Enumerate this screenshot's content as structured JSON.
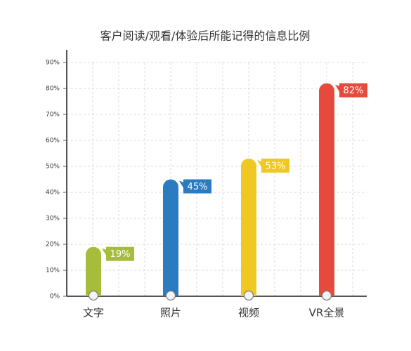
{
  "chart_data": {
    "type": "bar",
    "title": "客户阅读/观看/体验后所能记得的信息比例",
    "categories": [
      "文字",
      "照片",
      "视频",
      "VR全景"
    ],
    "values": [
      19,
      45,
      53,
      82
    ],
    "value_labels": [
      "19%",
      "45%",
      "53%",
      "82%"
    ],
    "colors": [
      "#a5bd3a",
      "#2b7bc0",
      "#f0c824",
      "#e54a3b"
    ],
    "ylim": [
      0,
      90
    ],
    "yticks": [
      {
        "value": 0,
        "label": "0%"
      },
      {
        "value": 10,
        "label": "10%"
      },
      {
        "value": 20,
        "label": "20%"
      },
      {
        "value": 30,
        "label": "30%"
      },
      {
        "value": 40,
        "label": "40%"
      },
      {
        "value": 50,
        "label": "50%"
      },
      {
        "value": 60,
        "label": "60%"
      },
      {
        "value": 70,
        "label": "70%"
      },
      {
        "value": 80,
        "label": "80%"
      },
      {
        "value": 90,
        "label": "90%"
      }
    ],
    "grid": true
  }
}
